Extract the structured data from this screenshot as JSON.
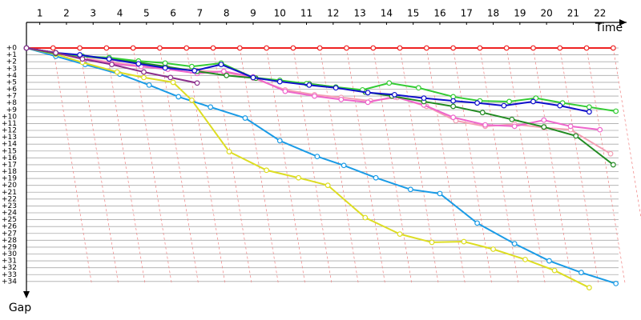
{
  "chart_data": {
    "type": "line",
    "x_label": "Time",
    "y_label": "Gap",
    "xlim": [
      0,
      22.5
    ],
    "ylim": [
      0,
      36
    ],
    "grid": true,
    "xticks": [
      {
        "value": 0.5,
        "label": "1"
      },
      {
        "value": 1.5,
        "label": "2"
      },
      {
        "value": 2.5,
        "label": "3"
      },
      {
        "value": 3.5,
        "label": "4"
      },
      {
        "value": 4.5,
        "label": "5"
      },
      {
        "value": 5.5,
        "label": "6"
      },
      {
        "value": 6.5,
        "label": "7"
      },
      {
        "value": 7.5,
        "label": "8"
      },
      {
        "value": 8.5,
        "label": "9"
      },
      {
        "value": 9.5,
        "label": "10"
      },
      {
        "value": 10.5,
        "label": "11"
      },
      {
        "value": 11.5,
        "label": "12"
      },
      {
        "value": 12.5,
        "label": "13"
      },
      {
        "value": 13.5,
        "label": "14"
      },
      {
        "value": 14.5,
        "label": "15"
      },
      {
        "value": 15.5,
        "label": "16"
      },
      {
        "value": 16.5,
        "label": "17"
      },
      {
        "value": 17.5,
        "label": "18"
      },
      {
        "value": 18.5,
        "label": "19"
      },
      {
        "value": 19.5,
        "label": "20"
      },
      {
        "value": 20.5,
        "label": "21"
      },
      {
        "value": 21.5,
        "label": "22"
      }
    ],
    "yticks": [
      {
        "value": 0,
        "label": "+0"
      },
      {
        "value": 1,
        "label": "+1"
      },
      {
        "value": 2,
        "label": "+2"
      },
      {
        "value": 3,
        "label": "+3"
      },
      {
        "value": 4,
        "label": "+4"
      },
      {
        "value": 5,
        "label": "+5"
      },
      {
        "value": 6,
        "label": "+6"
      },
      {
        "value": 7,
        "label": "+7"
      },
      {
        "value": 8,
        "label": "+8"
      },
      {
        "value": 9,
        "label": "+9"
      },
      {
        "value": 10,
        "label": "+10"
      },
      {
        "value": 11,
        "label": "+11"
      },
      {
        "value": 12,
        "label": "+12"
      },
      {
        "value": 13,
        "label": "+13"
      },
      {
        "value": 14,
        "label": "+14"
      },
      {
        "value": 15,
        "label": "+15"
      },
      {
        "value": 16,
        "label": "+16"
      },
      {
        "value": 17,
        "label": "+17"
      },
      {
        "value": 18,
        "label": "+18"
      },
      {
        "value": 19,
        "label": "+19"
      },
      {
        "value": 20,
        "label": "+20"
      },
      {
        "value": 21,
        "label": "+21"
      },
      {
        "value": 22,
        "label": "+22"
      },
      {
        "value": 23,
        "label": "+23"
      },
      {
        "value": 24,
        "label": "+24"
      },
      {
        "value": 25,
        "label": "+25"
      },
      {
        "value": 26,
        "label": "+26"
      },
      {
        "value": 27,
        "label": "+27"
      },
      {
        "value": 28,
        "label": "+28"
      },
      {
        "value": 29,
        "label": "+29"
      },
      {
        "value": 30,
        "label": "+30"
      },
      {
        "value": 31,
        "label": "+31"
      },
      {
        "value": 32,
        "label": "+32"
      },
      {
        "value": 33,
        "label": "+33"
      },
      {
        "value": 34,
        "label": "+34"
      }
    ],
    "series": [
      {
        "color": "#ee2222",
        "x": [
          0,
          1,
          2,
          3,
          4,
          5,
          6,
          7,
          8,
          9,
          10,
          11,
          12,
          13,
          14,
          15,
          16,
          17,
          18,
          19,
          20,
          21,
          22
        ],
        "values": [
          0,
          0,
          0,
          0,
          0,
          0,
          0,
          0,
          0,
          0,
          0,
          0,
          0,
          0,
          0,
          0,
          0,
          0,
          0,
          0,
          0,
          0,
          0
        ]
      },
      {
        "color": "#1a9be6",
        "x": [
          0,
          1.1,
          2.2,
          3.5,
          4.6,
          5.7,
          6.9,
          8.2,
          9.5,
          10.9,
          11.9,
          13.1,
          14.4,
          15.5,
          16.9,
          18.3,
          19.6,
          20.8,
          22.1
        ],
        "values": [
          0,
          1.2,
          2.4,
          3.8,
          5.4,
          7.1,
          8.6,
          10.2,
          13.5,
          15.8,
          17.1,
          18.9,
          20.6,
          21.2,
          25.5,
          28.5,
          31,
          32.7,
          34.3
        ]
      },
      {
        "color": "#dddd22",
        "x": [
          0,
          1.1,
          2.1,
          3.4,
          4.4,
          5.5,
          6.2,
          7.6,
          9.0,
          10.2,
          11.3,
          12.7,
          14.0,
          15.2,
          16.4,
          17.5,
          18.7,
          19.8,
          21.1
        ],
        "values": [
          0,
          0.9,
          2.1,
          3.5,
          4.3,
          5.0,
          7.6,
          15.1,
          17.8,
          18.9,
          20.0,
          24.7,
          27.1,
          28.3,
          28.2,
          29.3,
          30.8,
          32.4,
          34.9
        ]
      },
      {
        "color": "#f4a0b4",
        "x": [
          0,
          1.1,
          2.2,
          3.2,
          4.3,
          5.3,
          6.4,
          7.4,
          8.5,
          9.7,
          10.8,
          11.8,
          12.9,
          13.9,
          15.0,
          16.1,
          17.2,
          18.3,
          19.4,
          20.4,
          21.9
        ],
        "values": [
          0,
          0.7,
          1.5,
          2.1,
          2.6,
          2.9,
          3.3,
          3.5,
          4.4,
          6.1,
          6.8,
          7.2,
          7.7,
          7.2,
          8.5,
          10.6,
          11.4,
          11.1,
          11.6,
          11.9,
          15.4
        ]
      },
      {
        "color": "#ee66cc",
        "x": [
          0,
          1.1,
          2.2,
          3.2,
          4.3,
          5.3,
          6.4,
          7.4,
          8.5,
          9.7,
          10.8,
          11.8,
          12.8,
          13.8,
          14.9,
          16.0,
          17.2,
          18.3,
          19.4,
          20.4,
          21.5
        ],
        "values": [
          0,
          0.7,
          1.6,
          2.3,
          2.7,
          3.1,
          3.7,
          3.4,
          4.2,
          6.3,
          7.0,
          7.5,
          7.9,
          7.1,
          8.3,
          10.1,
          11.2,
          11.4,
          10.5,
          11.4,
          11.9
        ]
      },
      {
        "color": "#228b22",
        "x": [
          0,
          1.1,
          2.1,
          3.1,
          4.2,
          5.2,
          6.4,
          7.5,
          8.6,
          9.5,
          10.6,
          11.6,
          12.7,
          13.7,
          14.9,
          16.0,
          17.1,
          18.2,
          19.4,
          20.6,
          22.0
        ],
        "values": [
          0,
          0.8,
          1.2,
          1.6,
          2.1,
          2.7,
          3.4,
          4.0,
          4.4,
          4.8,
          5.2,
          5.7,
          6.4,
          7.0,
          7.8,
          8.5,
          9.4,
          10.4,
          11.5,
          12.8,
          17.0
        ]
      },
      {
        "color": "#33cc33",
        "x": [
          0,
          1.1,
          2.1,
          3.1,
          4.2,
          5.2,
          6.2,
          7.3,
          8.5,
          9.5,
          10.5,
          11.6,
          12.6,
          13.6,
          14.7,
          16.0,
          17.0,
          18.1,
          19.1,
          20.1,
          21.1,
          22.1
        ],
        "values": [
          0,
          0.7,
          1.2,
          1.4,
          1.9,
          2.2,
          2.7,
          2.2,
          4.3,
          4.7,
          5.2,
          5.7,
          6.1,
          5.1,
          5.8,
          7.1,
          7.7,
          7.8,
          7.3,
          8.0,
          8.6,
          9.2
        ]
      },
      {
        "color": "#1010cc",
        "x": [
          0,
          1.1,
          2.0,
          3.1,
          4.2,
          5.2,
          6.3,
          7.3,
          8.5,
          9.5,
          10.6,
          11.6,
          12.8,
          13.8,
          14.9,
          16.0,
          16.9,
          17.9,
          19.0,
          20.0,
          21.1
        ],
        "values": [
          0,
          0.7,
          1.0,
          1.6,
          2.3,
          2.9,
          3.3,
          2.4,
          4.3,
          4.9,
          5.4,
          5.8,
          6.5,
          6.8,
          7.3,
          7.7,
          8.0,
          8.4,
          7.8,
          8.4,
          9.3
        ]
      },
      {
        "color": "#8b2e8b",
        "x": [
          0,
          1.1,
          2.1,
          3.2,
          4.4,
          5.4,
          6.4
        ],
        "values": [
          0,
          0.7,
          1.6,
          2.4,
          3.5,
          4.3,
          5.1
        ]
      }
    ]
  }
}
